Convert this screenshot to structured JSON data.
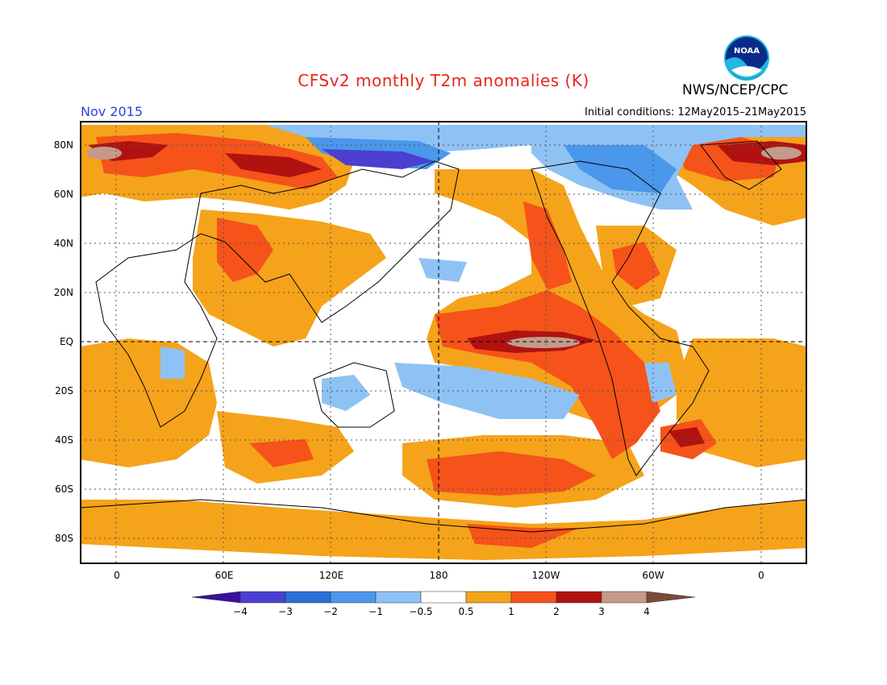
{
  "header": {
    "title": "CFSv2 monthly T2m anomalies (K)",
    "agency": "NWS/NCEP/CPC",
    "month": "Nov 2015",
    "initial_conditions": "Initial conditions: 12May2015–21May2015",
    "logo_text": "NOAA"
  },
  "axes": {
    "lat_labels": [
      "80N",
      "60N",
      "40N",
      "20N",
      "EQ",
      "20S",
      "40S",
      "60S",
      "80S"
    ],
    "lon_labels": [
      "0",
      "60E",
      "120E",
      "180",
      "120W",
      "60W",
      "0"
    ]
  },
  "colorbar": {
    "labels": [
      "−4",
      "−3",
      "−2",
      "−1",
      "−0.5",
      "0.5",
      "1",
      "2",
      "3",
      "4"
    ],
    "colors": [
      "#3c0fa0",
      "#4b3fd2",
      "#2a6fd8",
      "#4a97ec",
      "#8fc2f4",
      "#ffffff",
      "#f5a31a",
      "#f5531a",
      "#b0120f",
      "#c49a8a",
      "#7a4a3a"
    ]
  },
  "chart_data": {
    "type": "heatmap",
    "projection": "cylindrical equidistant",
    "lon_range": [
      -20,
      380
    ],
    "lat_range": [
      -90,
      90
    ],
    "variable": "T2m anomaly",
    "units": "K",
    "grid": "dotted",
    "reference_lines": [
      "equator",
      "180 meridian"
    ],
    "levels": [
      -4,
      -3,
      -2,
      -1,
      -0.5,
      0.5,
      1,
      2,
      3,
      4
    ]
  }
}
